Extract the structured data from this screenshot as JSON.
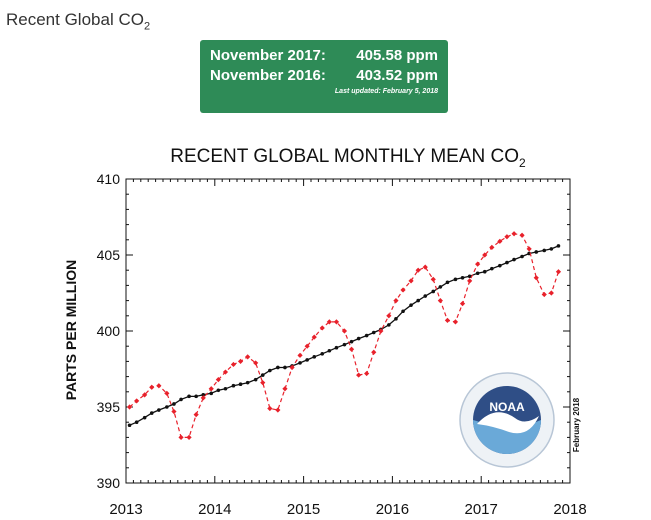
{
  "header": {
    "title": "Recent Global CO",
    "title_subscript": "2"
  },
  "readout": {
    "rows": [
      {
        "label": "November 2017:",
        "value": "405.58 ppm"
      },
      {
        "label": "November 2016:",
        "value": "403.52 ppm"
      }
    ],
    "updated": "Last updated: February 5, 2018"
  },
  "logo": {
    "text": "NOAA"
  },
  "chart_data": {
    "type": "line",
    "title": "RECENT GLOBAL MONTHLY MEAN CO",
    "title_subscript": "2",
    "xlabel": "",
    "ylabel": "PARTS PER MILLION",
    "xlim": [
      2013,
      2018
    ],
    "ylim": [
      390,
      410
    ],
    "x_ticks": [
      "2013",
      "2014",
      "2015",
      "2016",
      "2017",
      "2018"
    ],
    "y_ticks": [
      "390",
      "395",
      "400",
      "405",
      "410"
    ],
    "date_stamp": "February 2018",
    "grid": false,
    "legend": "none",
    "colors": {
      "monthly": "#e8212b",
      "trend": "#111111",
      "frame": "#111111"
    },
    "series": [
      {
        "style": "dashed-red-diamonds",
        "x": [
          2013.04,
          2013.12,
          2013.21,
          2013.29,
          2013.37,
          2013.46,
          2013.54,
          2013.62,
          2013.71,
          2013.79,
          2013.87,
          2013.96,
          2014.04,
          2014.12,
          2014.21,
          2014.29,
          2014.37,
          2014.46,
          2014.54,
          2014.62,
          2014.71,
          2014.79,
          2014.87,
          2014.96,
          2015.04,
          2015.12,
          2015.21,
          2015.29,
          2015.37,
          2015.46,
          2015.54,
          2015.62,
          2015.71,
          2015.79,
          2015.87,
          2015.96,
          2016.04,
          2016.12,
          2016.21,
          2016.29,
          2016.37,
          2016.46,
          2016.54,
          2016.62,
          2016.71,
          2016.79,
          2016.87,
          2016.96,
          2017.04,
          2017.12,
          2017.21,
          2017.29,
          2017.37,
          2017.46,
          2017.54,
          2017.62,
          2017.71,
          2017.79,
          2017.87
        ],
        "values": [
          395.0,
          395.4,
          395.8,
          396.3,
          396.4,
          395.9,
          394.7,
          393.0,
          393.0,
          394.5,
          395.6,
          396.2,
          396.8,
          397.3,
          397.8,
          398.0,
          398.3,
          397.9,
          396.6,
          394.9,
          394.8,
          396.2,
          397.6,
          398.4,
          399.0,
          399.6,
          400.2,
          400.6,
          400.6,
          400.0,
          398.8,
          397.1,
          397.2,
          398.6,
          400.0,
          401.0,
          402.0,
          402.7,
          403.3,
          404.0,
          404.2,
          403.4,
          402.0,
          400.7,
          400.6,
          401.8,
          403.3,
          404.4,
          405.0,
          405.5,
          405.9,
          406.2,
          406.4,
          406.3,
          405.4,
          403.5,
          402.4,
          402.5,
          403.9
        ]
      },
      {
        "style": "solid-black-dots",
        "x": [
          2013.04,
          2013.12,
          2013.21,
          2013.29,
          2013.37,
          2013.46,
          2013.54,
          2013.62,
          2013.71,
          2013.79,
          2013.87,
          2013.96,
          2014.04,
          2014.12,
          2014.21,
          2014.29,
          2014.37,
          2014.46,
          2014.54,
          2014.62,
          2014.71,
          2014.79,
          2014.87,
          2014.96,
          2015.04,
          2015.12,
          2015.21,
          2015.29,
          2015.37,
          2015.46,
          2015.54,
          2015.62,
          2015.71,
          2015.79,
          2015.87,
          2015.96,
          2016.04,
          2016.12,
          2016.21,
          2016.29,
          2016.37,
          2016.46,
          2016.54,
          2016.62,
          2016.71,
          2016.79,
          2016.87,
          2016.96,
          2017.04,
          2017.12,
          2017.21,
          2017.29,
          2017.37,
          2017.46,
          2017.54,
          2017.62,
          2017.71,
          2017.79,
          2017.87
        ],
        "values": [
          393.8,
          394.0,
          394.3,
          394.6,
          394.8,
          395.0,
          395.2,
          395.5,
          395.7,
          395.7,
          395.8,
          395.9,
          396.1,
          396.2,
          396.4,
          396.5,
          396.6,
          396.8,
          397.1,
          397.4,
          397.6,
          397.6,
          397.7,
          397.9,
          398.1,
          398.3,
          398.5,
          398.7,
          398.9,
          399.1,
          399.3,
          399.5,
          399.7,
          399.9,
          400.1,
          400.4,
          400.8,
          401.3,
          401.7,
          402.0,
          402.3,
          402.6,
          402.9,
          403.2,
          403.4,
          403.5,
          403.6,
          403.8,
          403.9,
          404.1,
          404.3,
          404.5,
          404.7,
          404.9,
          405.1,
          405.2,
          405.3,
          405.4,
          405.6
        ]
      }
    ]
  }
}
